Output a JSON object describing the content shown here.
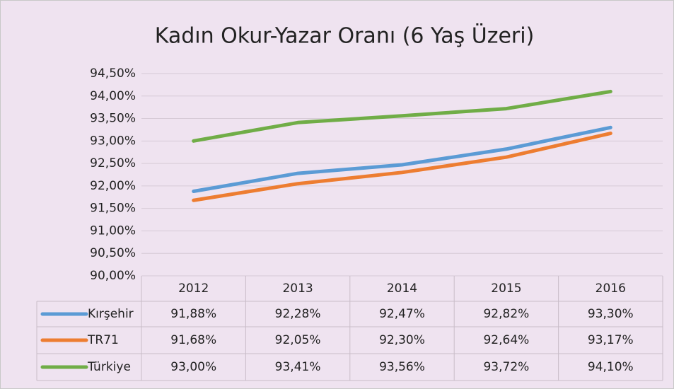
{
  "chart_data": {
    "type": "line",
    "title": "Kadın Okur-Yazar Oranı (6 Yaş Üzeri)",
    "categories": [
      "2012",
      "2013",
      "2014",
      "2015",
      "2016"
    ],
    "series": [
      {
        "name": "Kırşehir",
        "color": "#5b9bd5",
        "values": [
          91.88,
          92.28,
          92.47,
          92.82,
          93.3
        ],
        "value_labels": [
          "91,88%",
          "92,28%",
          "92,47%",
          "92,82%",
          "93,30%"
        ]
      },
      {
        "name": "TR71",
        "color": "#ed7d31",
        "values": [
          91.68,
          92.05,
          92.3,
          92.64,
          93.17
        ],
        "value_labels": [
          "91,68%",
          "92,05%",
          "92,30%",
          "92,64%",
          "93,17%"
        ]
      },
      {
        "name": "Türkiye",
        "color": "#70ad47",
        "values": [
          93.0,
          93.41,
          93.56,
          93.72,
          94.1
        ],
        "value_labels": [
          "93,00%",
          "93,41%",
          "93,56%",
          "93,72%",
          "94,10%"
        ]
      }
    ],
    "ylim": [
      90,
      94.5
    ],
    "yticks": [
      {
        "value": 90,
        "label": "90,00%"
      },
      {
        "value": 90.5,
        "label": "90,50%"
      },
      {
        "value": 91,
        "label": "91,00%"
      },
      {
        "value": 91.5,
        "label": "91,50%"
      },
      {
        "value": 92,
        "label": "92,00%"
      },
      {
        "value": 92.5,
        "label": "92,50%"
      },
      {
        "value": 93,
        "label": "93,00%"
      },
      {
        "value": 93.5,
        "label": "93,50%"
      },
      {
        "value": 94,
        "label": "94,00%"
      },
      {
        "value": 94.5,
        "label": "94,50%"
      }
    ],
    "grid": true,
    "data_table": true
  }
}
